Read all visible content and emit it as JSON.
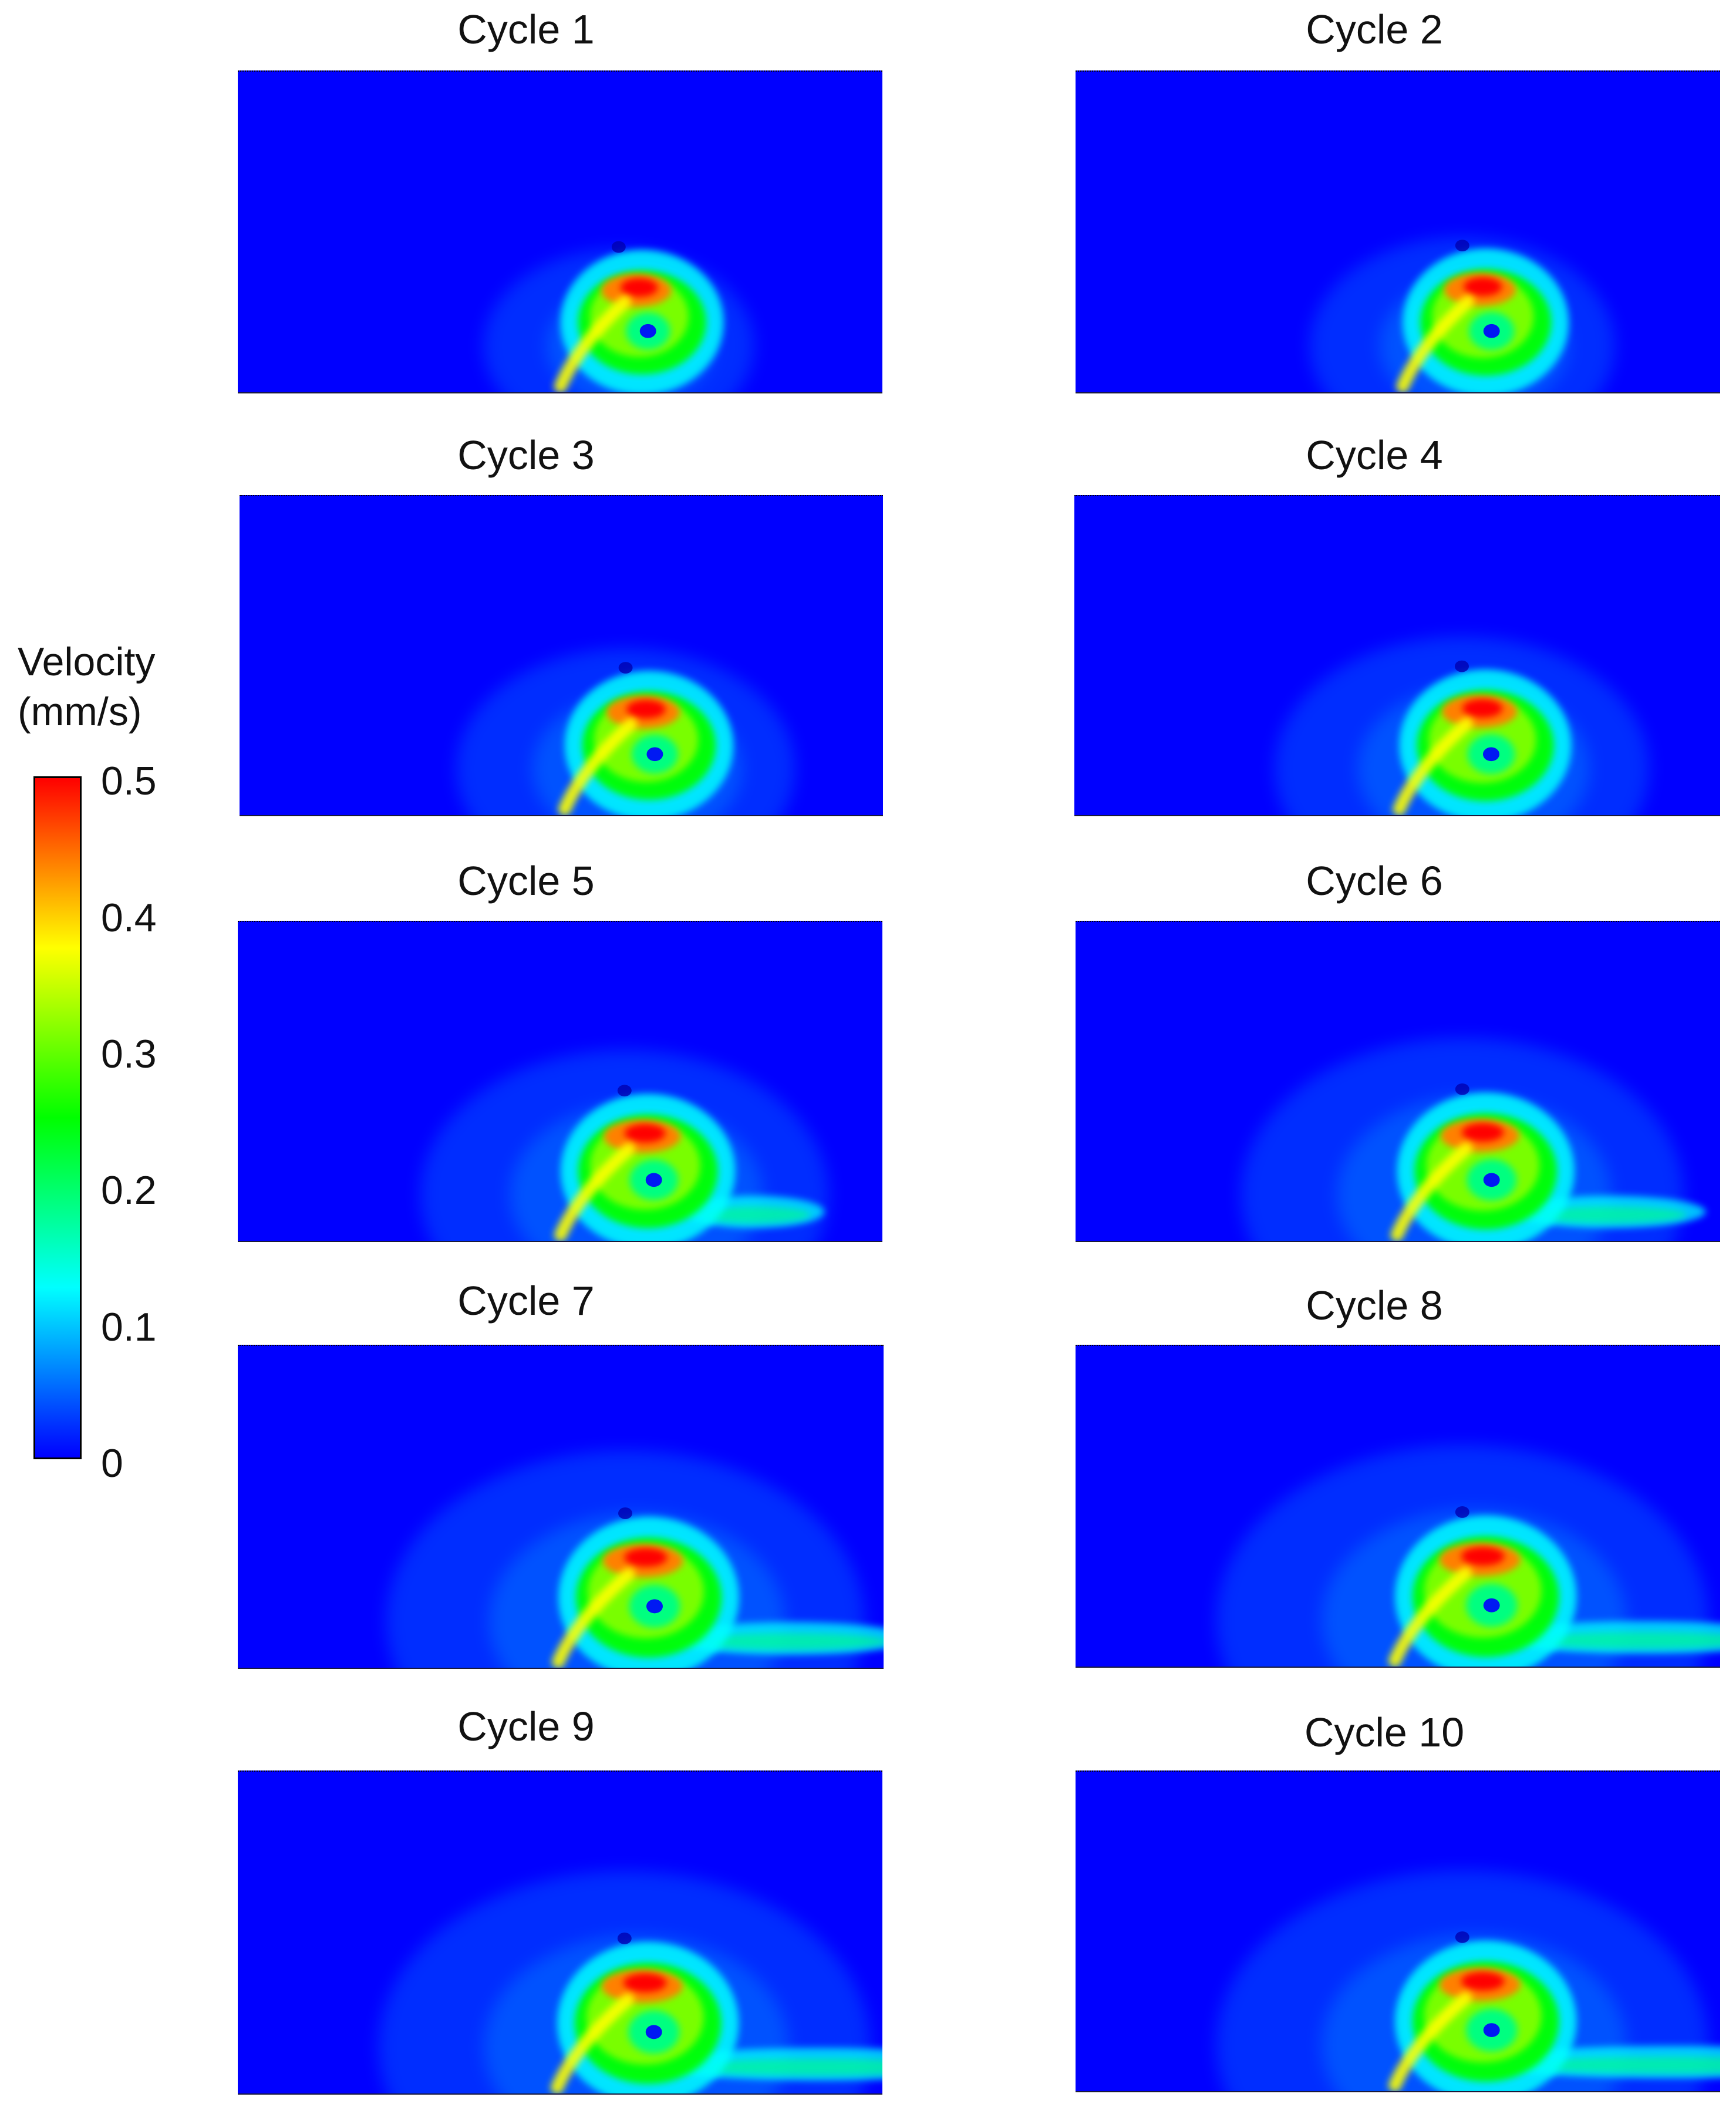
{
  "figure": {
    "colorbar": {
      "title_line1": "Velocity",
      "title_line2": "(mm/s)",
      "ticks": [
        "0.5",
        "0.4",
        "0.3",
        "0.2",
        "0.1",
        "0"
      ],
      "range": [
        0,
        0.5
      ],
      "colormap": [
        "#0000ff",
        "#0080ff",
        "#00ffff",
        "#00ff80",
        "#00ff00",
        "#80ff00",
        "#ffff00",
        "#ff8000",
        "#ff0000"
      ]
    },
    "panels": [
      {
        "title": "Cycle 1"
      },
      {
        "title": "Cycle 2"
      },
      {
        "title": "Cycle 3"
      },
      {
        "title": "Cycle 4"
      },
      {
        "title": "Cycle 5"
      },
      {
        "title": "Cycle 6"
      },
      {
        "title": "Cycle 7"
      },
      {
        "title": "Cycle 8"
      },
      {
        "title": "Cycle 9"
      },
      {
        "title": "Cycle 10"
      }
    ]
  },
  "chart_data": {
    "type": "heatmap",
    "quantity": "Velocity",
    "units": "mm/s",
    "color_range": [
      0,
      0.5
    ],
    "panels": [
      "Cycle 1",
      "Cycle 2",
      "Cycle 3",
      "Cycle 4",
      "Cycle 5",
      "Cycle 6",
      "Cycle 7",
      "Cycle 8",
      "Cycle 9",
      "Cycle 10"
    ],
    "peak_velocity_approx": [
      0.5,
      0.5,
      0.5,
      0.5,
      0.5,
      0.5,
      0.5,
      0.5,
      0.5,
      0.5
    ],
    "background_velocity_approx": 0.02
  }
}
